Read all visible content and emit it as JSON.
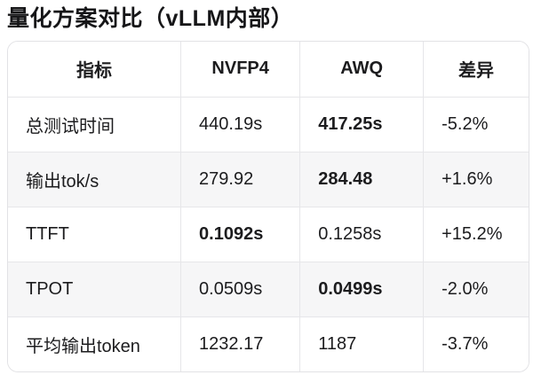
{
  "chart_data": {
    "type": "table",
    "title": "量化方案对比（vLLM内部）",
    "columns": [
      "指标",
      "NVFP4",
      "AWQ",
      "差异"
    ],
    "rows": [
      [
        "总测试时间",
        "440.19s",
        "417.25s",
        "-5.2%"
      ],
      [
        "输出tok/s",
        "279.92",
        "284.48",
        "+1.6%"
      ],
      [
        "TTFT",
        "0.1092s",
        "0.1258s",
        "+15.2%"
      ],
      [
        "TPOT",
        "0.0509s",
        "0.0499s",
        "-2.0%"
      ],
      [
        "平均输出token",
        "1232.17",
        "1187",
        "-3.7%"
      ]
    ],
    "bold_cells": [
      [
        0,
        2
      ],
      [
        1,
        2
      ],
      [
        2,
        1
      ],
      [
        3,
        2
      ]
    ],
    "layout_hints": {
      "alternating_row_shading": "even data rows shaded",
      "header_alignment": "center",
      "data_alignment": "left"
    }
  },
  "colors": {
    "text": "#1c1c1e",
    "border": "#e6e6e9",
    "row_alt_background": "#f6f6f7",
    "background": "#ffffff"
  }
}
